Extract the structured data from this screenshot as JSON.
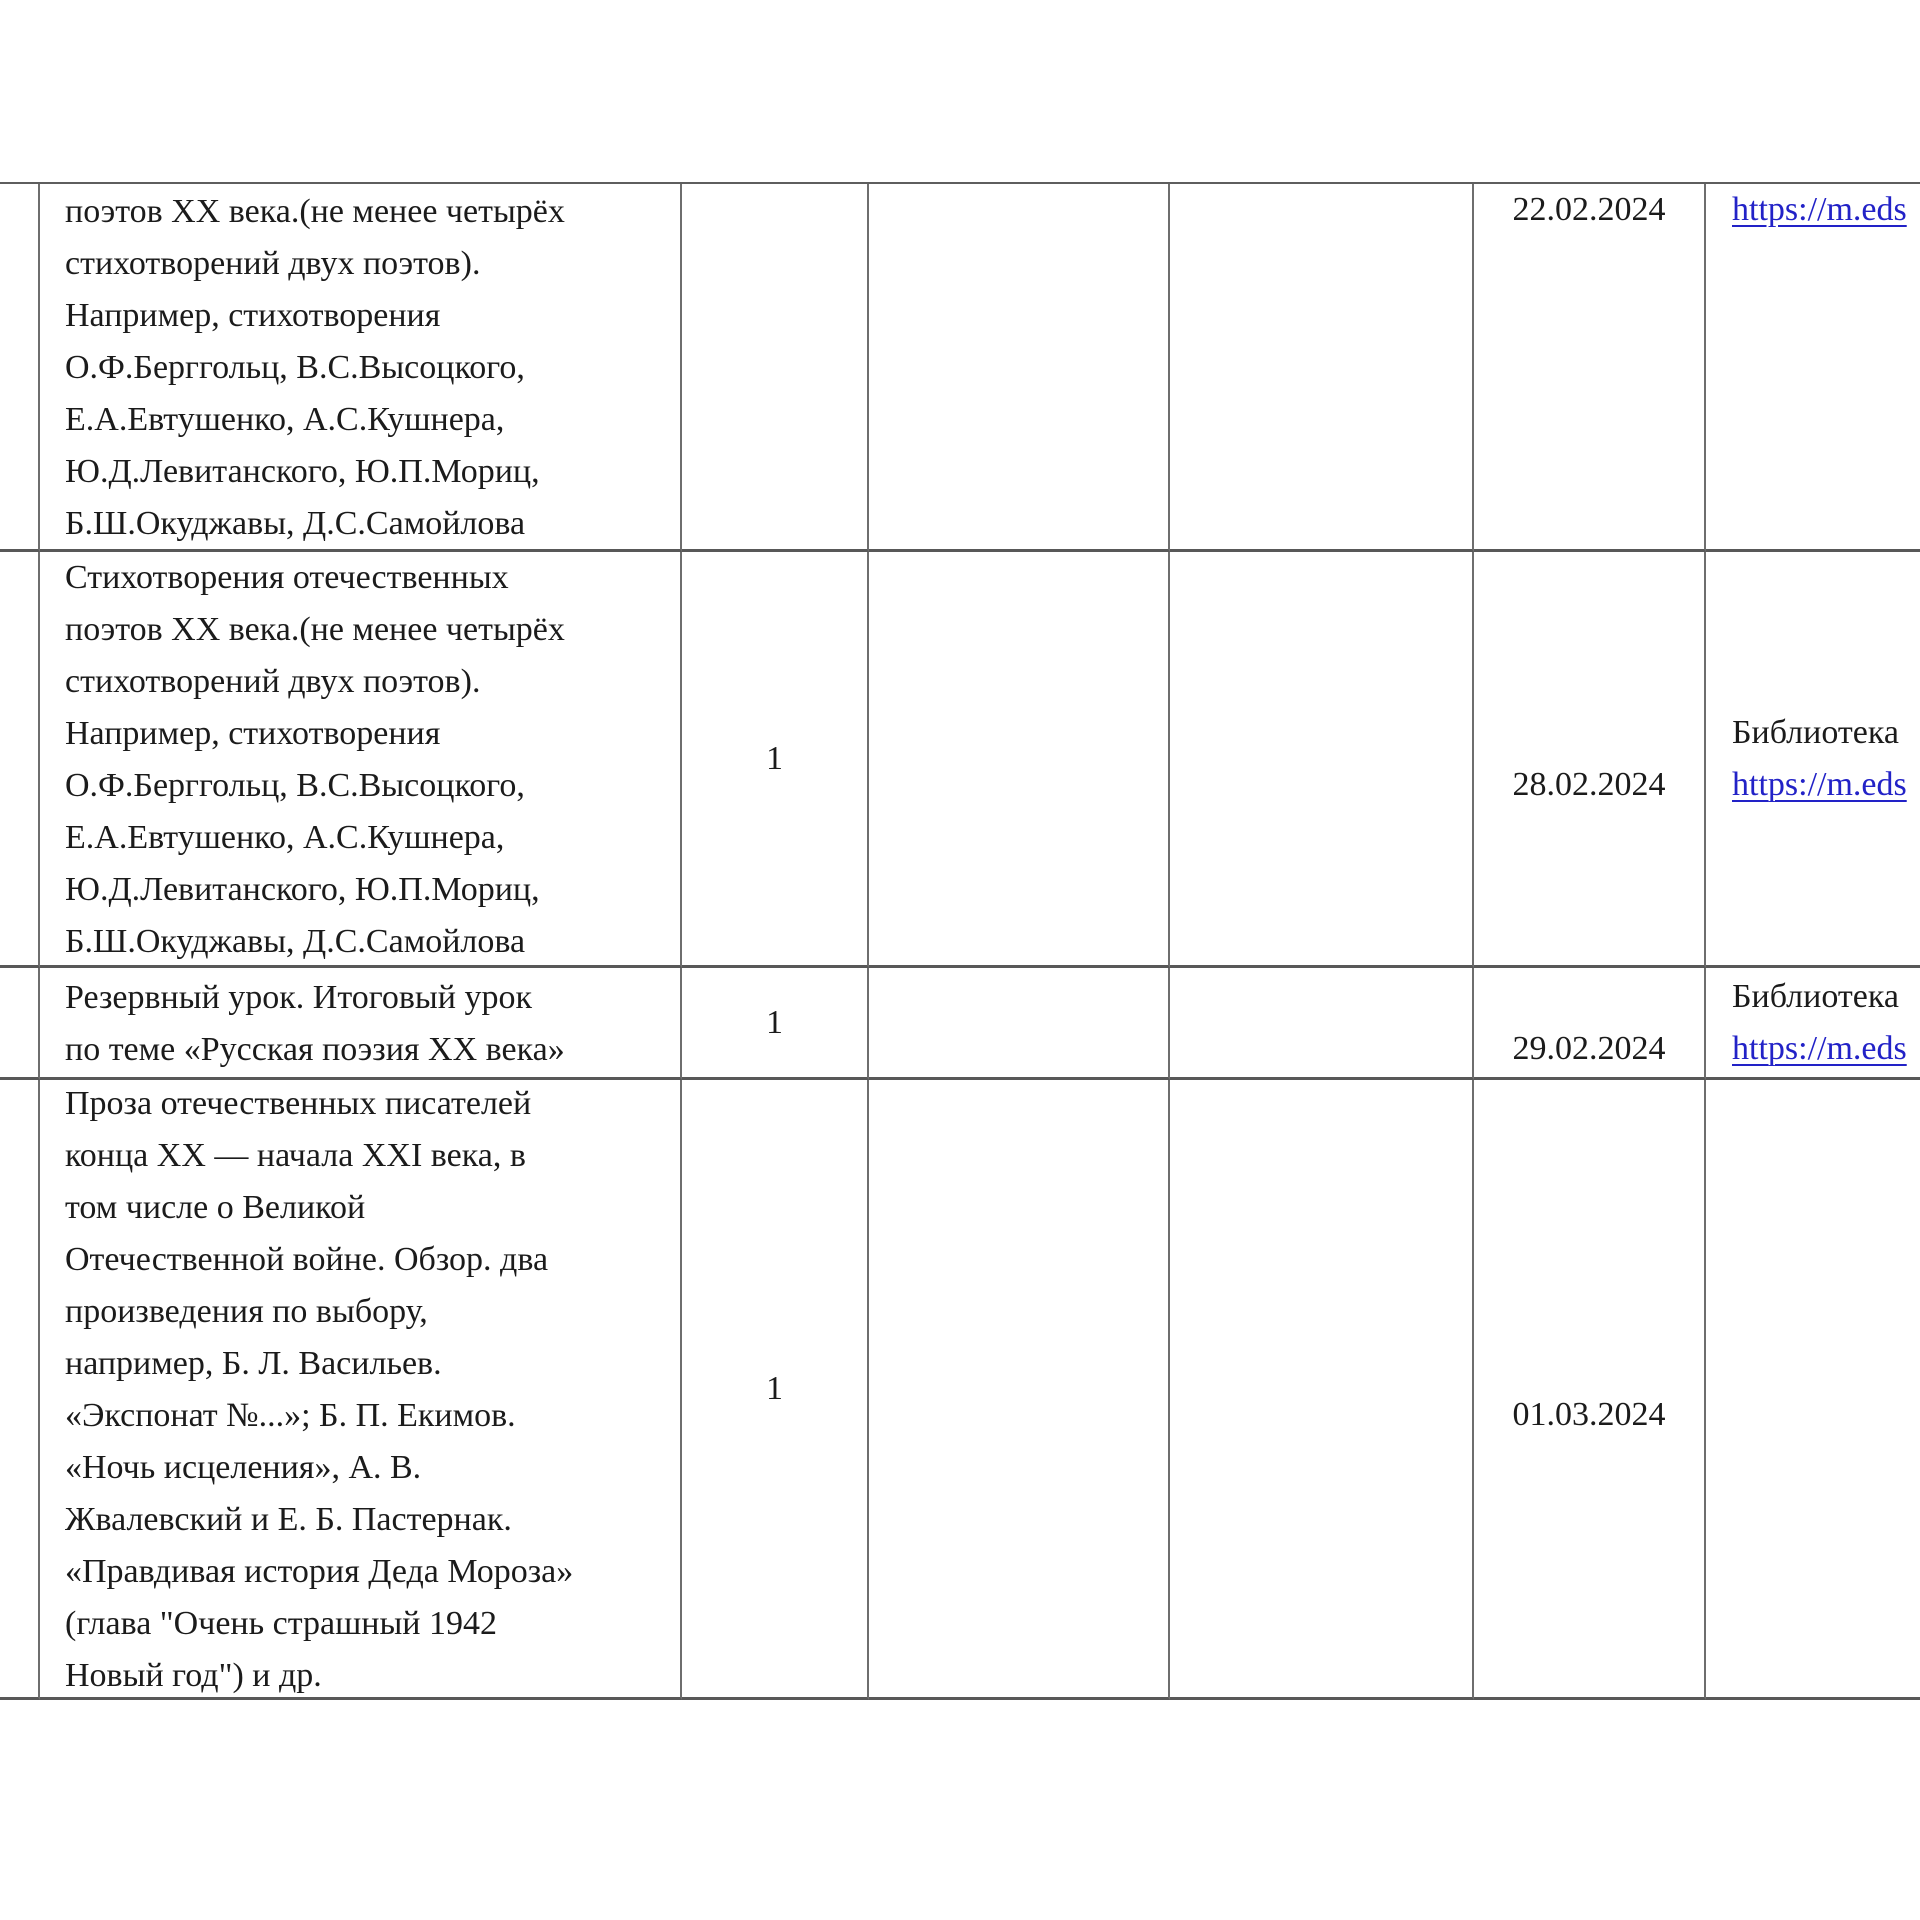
{
  "page": {
    "background": "#ffffff",
    "text_color": "#1b1b1b",
    "link_color": "#2222c7"
  },
  "table": {
    "rows": [
      {
        "topic_lines": [
          "поэтов XX века.(не менее четырёх",
          "стихотворений двух поэтов).",
          "Например, стихотворения",
          "О.Ф.Берггольц, В.С.Высоцкого,",
          "Е.А.Евтушенко, А.С.Кушнера,",
          "Ю.Д.Левитанского, Ю.П.Мориц,",
          "Б.Ш.Окуджавы, Д.С.Самойлова"
        ],
        "hours": "",
        "date": "22.02.2024",
        "resources": {
          "label": "",
          "link": "https://m.eds"
        }
      },
      {
        "topic_lines": [
          "Стихотворения отечественных",
          "поэтов XX века.(не менее четырёх",
          "стихотворений двух поэтов).",
          "Например, стихотворения",
          "О.Ф.Берггольц, В.С.Высоцкого,",
          "Е.А.Евтушенко, А.С.Кушнера,",
          "Ю.Д.Левитанского, Ю.П.Мориц,",
          "Б.Ш.Окуджавы, Д.С.Самойлова"
        ],
        "hours": "1",
        "date": "28.02.2024",
        "resources": {
          "label": "Библиотека",
          "link": "https://m.eds"
        }
      },
      {
        "topic_lines": [
          "Резервный урок. Итоговый урок",
          "по теме «Русская поэзия XX века»"
        ],
        "hours": "1",
        "date": "29.02.2024",
        "resources": {
          "label": "Библиотека",
          "link": "https://m.eds"
        }
      },
      {
        "topic_lines": [
          "Проза отечественных писателей",
          "конца XX — начала XXI века, в",
          "том числе о Великой",
          "Отечественной войне. Обзор. два",
          "произведения по выбору,",
          "например, Б. Л. Васильев.",
          "«Экспонат №...»; Б. П. Екимов.",
          "«Ночь исцеления», А. В.",
          "Жвалевский и Е. Б. Пастернак.",
          "«Правдивая история Деда Мороза»",
          "(глава \"Очень страшный 1942",
          "Новый год\") и др."
        ],
        "hours": "1",
        "date": "01.03.2024",
        "resources": {
          "label": "",
          "link": ""
        }
      }
    ]
  }
}
